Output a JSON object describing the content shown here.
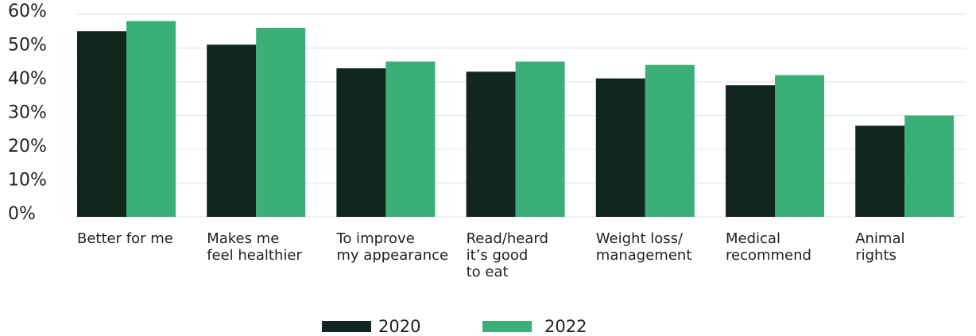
{
  "chart_data": {
    "type": "bar",
    "categories": [
      "Better for me",
      "Makes me\nfeel healthier",
      "To improve\nmy appearance",
      "Read/heard\nit’s good\nto eat",
      "Weight loss/\nmanagement",
      "Medical\nrecommend",
      "Animal\nrights"
    ],
    "series": [
      {
        "name": "2020",
        "color": "#11261c",
        "values": [
          55,
          51,
          44,
          43,
          41,
          39,
          27
        ]
      },
      {
        "name": "2022",
        "color": "#3aaf78",
        "values": [
          58,
          56,
          46,
          46,
          45,
          42,
          30
        ]
      }
    ],
    "ylim": [
      0,
      60
    ],
    "yticks": [
      {
        "value": 0,
        "label": "0%"
      },
      {
        "value": 10,
        "label": "10%"
      },
      {
        "value": 20,
        "label": "20%"
      },
      {
        "value": 30,
        "label": "30%"
      },
      {
        "value": 40,
        "label": "40%"
      },
      {
        "value": 50,
        "label": "50%"
      },
      {
        "value": 60,
        "label": "60%"
      }
    ],
    "grid": true,
    "legend": "bottom"
  }
}
